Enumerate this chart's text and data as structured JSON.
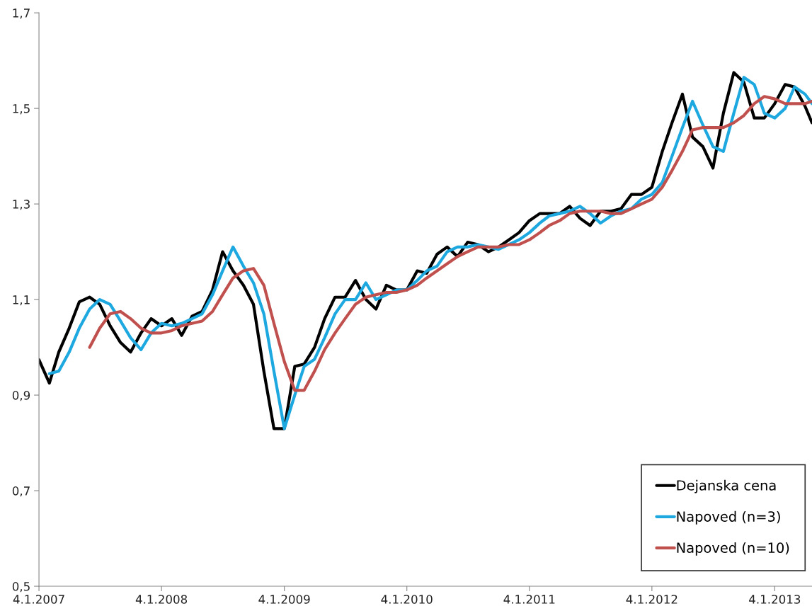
{
  "chart_data": {
    "type": "line",
    "x": [
      "2007-01-04",
      "2007-02-04",
      "2007-03-04",
      "2007-04-04",
      "2007-05-04",
      "2007-06-04",
      "2007-07-04",
      "2007-08-04",
      "2007-09-04",
      "2007-10-04",
      "2007-11-04",
      "2007-12-04",
      "2008-01-04",
      "2008-02-04",
      "2008-03-04",
      "2008-04-04",
      "2008-05-04",
      "2008-06-04",
      "2008-07-04",
      "2008-08-04",
      "2008-09-04",
      "2008-10-04",
      "2008-11-04",
      "2008-12-04",
      "2009-01-04",
      "2009-02-04",
      "2009-03-04",
      "2009-04-04",
      "2009-05-04",
      "2009-06-04",
      "2009-07-04",
      "2009-08-04",
      "2009-09-04",
      "2009-10-04",
      "2009-11-04",
      "2009-12-04",
      "2010-01-04",
      "2010-02-04",
      "2010-03-04",
      "2010-04-04",
      "2010-05-04",
      "2010-06-04",
      "2010-07-04",
      "2010-08-04",
      "2010-09-04",
      "2010-10-04",
      "2010-11-04",
      "2010-12-04",
      "2011-01-04",
      "2011-02-04",
      "2011-03-04",
      "2011-04-04",
      "2011-05-04",
      "2011-06-04",
      "2011-07-04",
      "2011-08-04",
      "2011-09-04",
      "2011-10-04",
      "2011-11-04",
      "2011-12-04",
      "2012-01-04",
      "2012-02-04",
      "2012-03-04",
      "2012-04-04",
      "2012-05-04",
      "2012-06-04",
      "2012-07-04",
      "2012-08-04",
      "2012-09-04",
      "2012-10-04",
      "2012-11-04",
      "2012-12-04",
      "2013-01-04",
      "2013-02-04",
      "2013-03-04",
      "2013-04-04",
      "2013-04-25"
    ],
    "series": [
      {
        "name": "Dejanska cena",
        "color": "#000000",
        "values": [
          0.974,
          0.925,
          0.99,
          1.04,
          1.095,
          1.105,
          1.09,
          1.045,
          1.01,
          0.99,
          1.03,
          1.06,
          1.045,
          1.06,
          1.025,
          1.065,
          1.075,
          1.12,
          1.2,
          1.16,
          1.13,
          1.09,
          0.95,
          0.83,
          0.83,
          0.96,
          0.965,
          1.0,
          1.06,
          1.105,
          1.105,
          1.14,
          1.1,
          1.08,
          1.13,
          1.12,
          1.12,
          1.16,
          1.155,
          1.195,
          1.21,
          1.19,
          1.22,
          1.215,
          1.2,
          1.21,
          1.225,
          1.24,
          1.265,
          1.28,
          1.28,
          1.28,
          1.295,
          1.27,
          1.255,
          1.285,
          1.285,
          1.29,
          1.32,
          1.32,
          1.335,
          1.41,
          1.47,
          1.53,
          1.44,
          1.42,
          1.375,
          1.49,
          1.575,
          1.555,
          1.48,
          1.48,
          1.51,
          1.55,
          1.545,
          1.505,
          1.47
        ]
      },
      {
        "name": "Napoved (n=3)",
        "color": "#1ea8e0",
        "values": [
          null,
          0.945,
          0.95,
          0.99,
          1.04,
          1.08,
          1.1,
          1.09,
          1.055,
          1.02,
          0.995,
          1.03,
          1.05,
          1.045,
          1.05,
          1.06,
          1.07,
          1.11,
          1.16,
          1.21,
          1.17,
          1.135,
          1.07,
          0.95,
          0.83,
          0.9,
          0.96,
          0.975,
          1.02,
          1.07,
          1.1,
          1.1,
          1.135,
          1.1,
          1.11,
          1.12,
          1.12,
          1.14,
          1.16,
          1.17,
          1.2,
          1.21,
          1.21,
          1.215,
          1.21,
          1.205,
          1.215,
          1.225,
          1.24,
          1.26,
          1.275,
          1.28,
          1.285,
          1.295,
          1.28,
          1.26,
          1.275,
          1.285,
          1.29,
          1.31,
          1.32,
          1.345,
          1.4,
          1.46,
          1.515,
          1.465,
          1.42,
          1.41,
          1.49,
          1.565,
          1.55,
          1.49,
          1.48,
          1.5,
          1.545,
          1.53,
          1.51
        ]
      },
      {
        "name": "Napoved (n=10)",
        "color": "#c0504d",
        "values": [
          null,
          null,
          null,
          null,
          null,
          1.0,
          1.04,
          1.07,
          1.075,
          1.06,
          1.04,
          1.03,
          1.03,
          1.035,
          1.045,
          1.05,
          1.055,
          1.075,
          1.11,
          1.145,
          1.16,
          1.165,
          1.13,
          1.05,
          0.97,
          0.91,
          0.91,
          0.95,
          0.995,
          1.03,
          1.06,
          1.09,
          1.105,
          1.11,
          1.115,
          1.115,
          1.12,
          1.13,
          1.145,
          1.16,
          1.175,
          1.19,
          1.2,
          1.21,
          1.21,
          1.21,
          1.215,
          1.215,
          1.225,
          1.24,
          1.255,
          1.265,
          1.28,
          1.285,
          1.285,
          1.285,
          1.28,
          1.28,
          1.29,
          1.3,
          1.31,
          1.335,
          1.37,
          1.41,
          1.455,
          1.46,
          1.46,
          1.46,
          1.47,
          1.485,
          1.51,
          1.525,
          1.52,
          1.51,
          1.51,
          1.51,
          1.515
        ]
      }
    ],
    "xlim": [
      "2007-01-04",
      "2013-04-25"
    ],
    "xticks": [
      {
        "value": "2007-01-04",
        "label": "4.1.2007"
      },
      {
        "value": "2008-01-04",
        "label": "4.1.2008"
      },
      {
        "value": "2009-01-04",
        "label": "4.1.2009"
      },
      {
        "value": "2010-01-04",
        "label": "4.1.2010"
      },
      {
        "value": "2011-01-04",
        "label": "4.1.2011"
      },
      {
        "value": "2012-01-04",
        "label": "4.1.2012"
      },
      {
        "value": "2013-01-04",
        "label": "4.1.2013"
      }
    ],
    "ylim": [
      0.5,
      1.7
    ],
    "yticks": [
      {
        "value": 0.5,
        "label": "0,5"
      },
      {
        "value": 0.7,
        "label": "0,7"
      },
      {
        "value": 0.9,
        "label": "0,9"
      },
      {
        "value": 1.1,
        "label": "1,1"
      },
      {
        "value": 1.3,
        "label": "1,3"
      },
      {
        "value": 1.5,
        "label": "1,5"
      },
      {
        "value": 1.7,
        "label": "1,7"
      }
    ],
    "grid": false,
    "legend": "bottom right",
    "line_style": "solid"
  }
}
